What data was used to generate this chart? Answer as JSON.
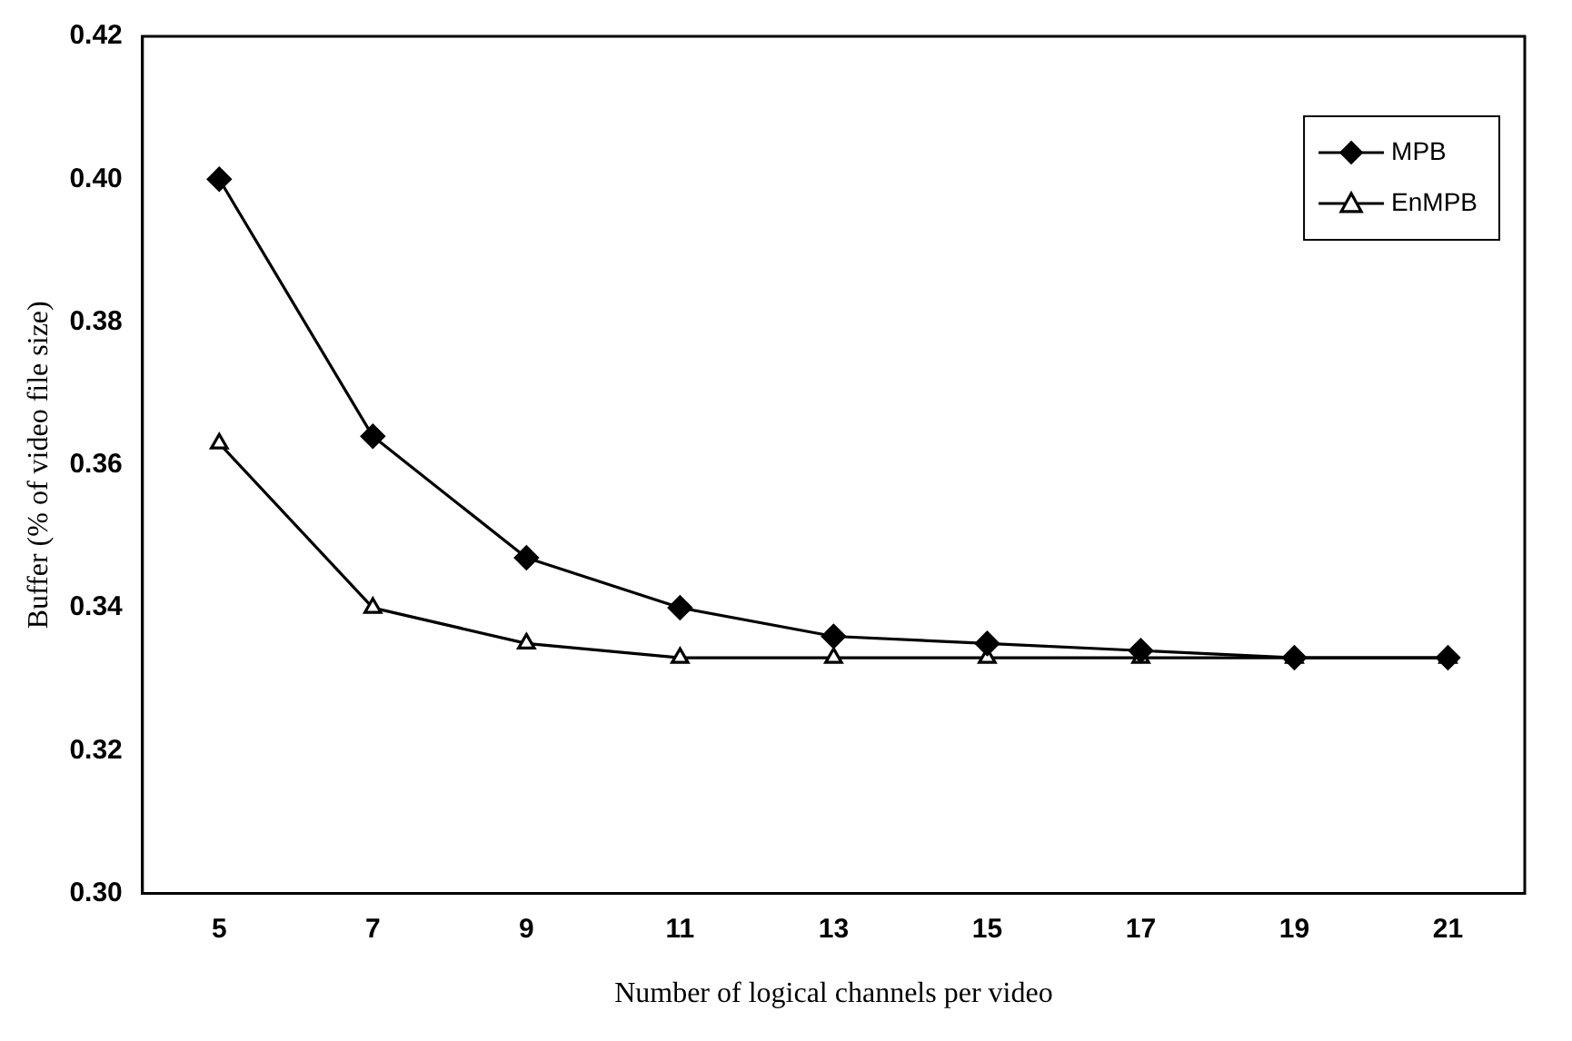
{
  "chart_data": {
    "type": "line",
    "xlabel": "Number of logical channels per video",
    "ylabel": "Buffer (% of video file size)",
    "categories": [
      "5",
      "7",
      "9",
      "11",
      "13",
      "15",
      "17",
      "19",
      "21"
    ],
    "series": [
      {
        "name": "MPB",
        "color": "#000000",
        "marker": "diamond",
        "values": [
          0.4,
          0.364,
          0.347,
          0.34,
          0.336,
          0.335,
          0.334,
          0.333,
          0.333
        ]
      },
      {
        "name": "EnMPB",
        "color": "#000000",
        "marker": "triangle",
        "values": [
          0.363,
          0.34,
          0.335,
          0.333,
          0.333,
          0.333,
          0.333,
          0.333,
          0.333
        ]
      }
    ],
    "ylim": [
      0.3,
      0.42
    ],
    "yticks": [
      {
        "value": 0.3,
        "label": "0.30"
      },
      {
        "value": 0.32,
        "label": "0.32"
      },
      {
        "value": 0.34,
        "label": "0.34"
      },
      {
        "value": 0.36,
        "label": "0.36"
      },
      {
        "value": 0.38,
        "label": "0.38"
      },
      {
        "value": 0.4,
        "label": "0.40"
      },
      {
        "value": 0.42,
        "label": "0.42"
      }
    ],
    "legend": "top right"
  }
}
